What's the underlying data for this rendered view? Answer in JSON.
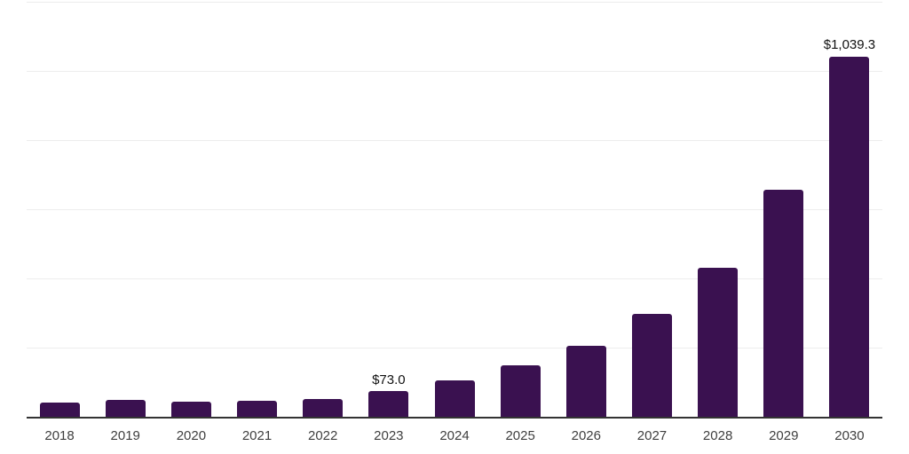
{
  "chart_data": {
    "type": "bar",
    "categories": [
      "2018",
      "2019",
      "2020",
      "2021",
      "2022",
      "2023",
      "2024",
      "2025",
      "2026",
      "2027",
      "2028",
      "2029",
      "2030"
    ],
    "values": [
      41,
      49,
      44,
      46,
      52,
      73.0,
      105,
      148,
      205,
      296,
      430,
      655,
      1039.3
    ],
    "data_labels": [
      "",
      "",
      "",
      "",
      "",
      "$73.0",
      "",
      "",
      "",
      "",
      "",
      "",
      "$1,039.3"
    ],
    "unit_prefix": "$",
    "ylim": [
      0,
      1200
    ],
    "gridline_step": 200,
    "grid": true,
    "y_tick_labels_visible": false,
    "legend_position": "none",
    "colors": {
      "bar": "#3a1150",
      "gridline": "#ededed",
      "axis_line": "#333333",
      "tick_label": "#3f3f3f",
      "data_label": "#111111",
      "background": "#ffffff"
    }
  }
}
